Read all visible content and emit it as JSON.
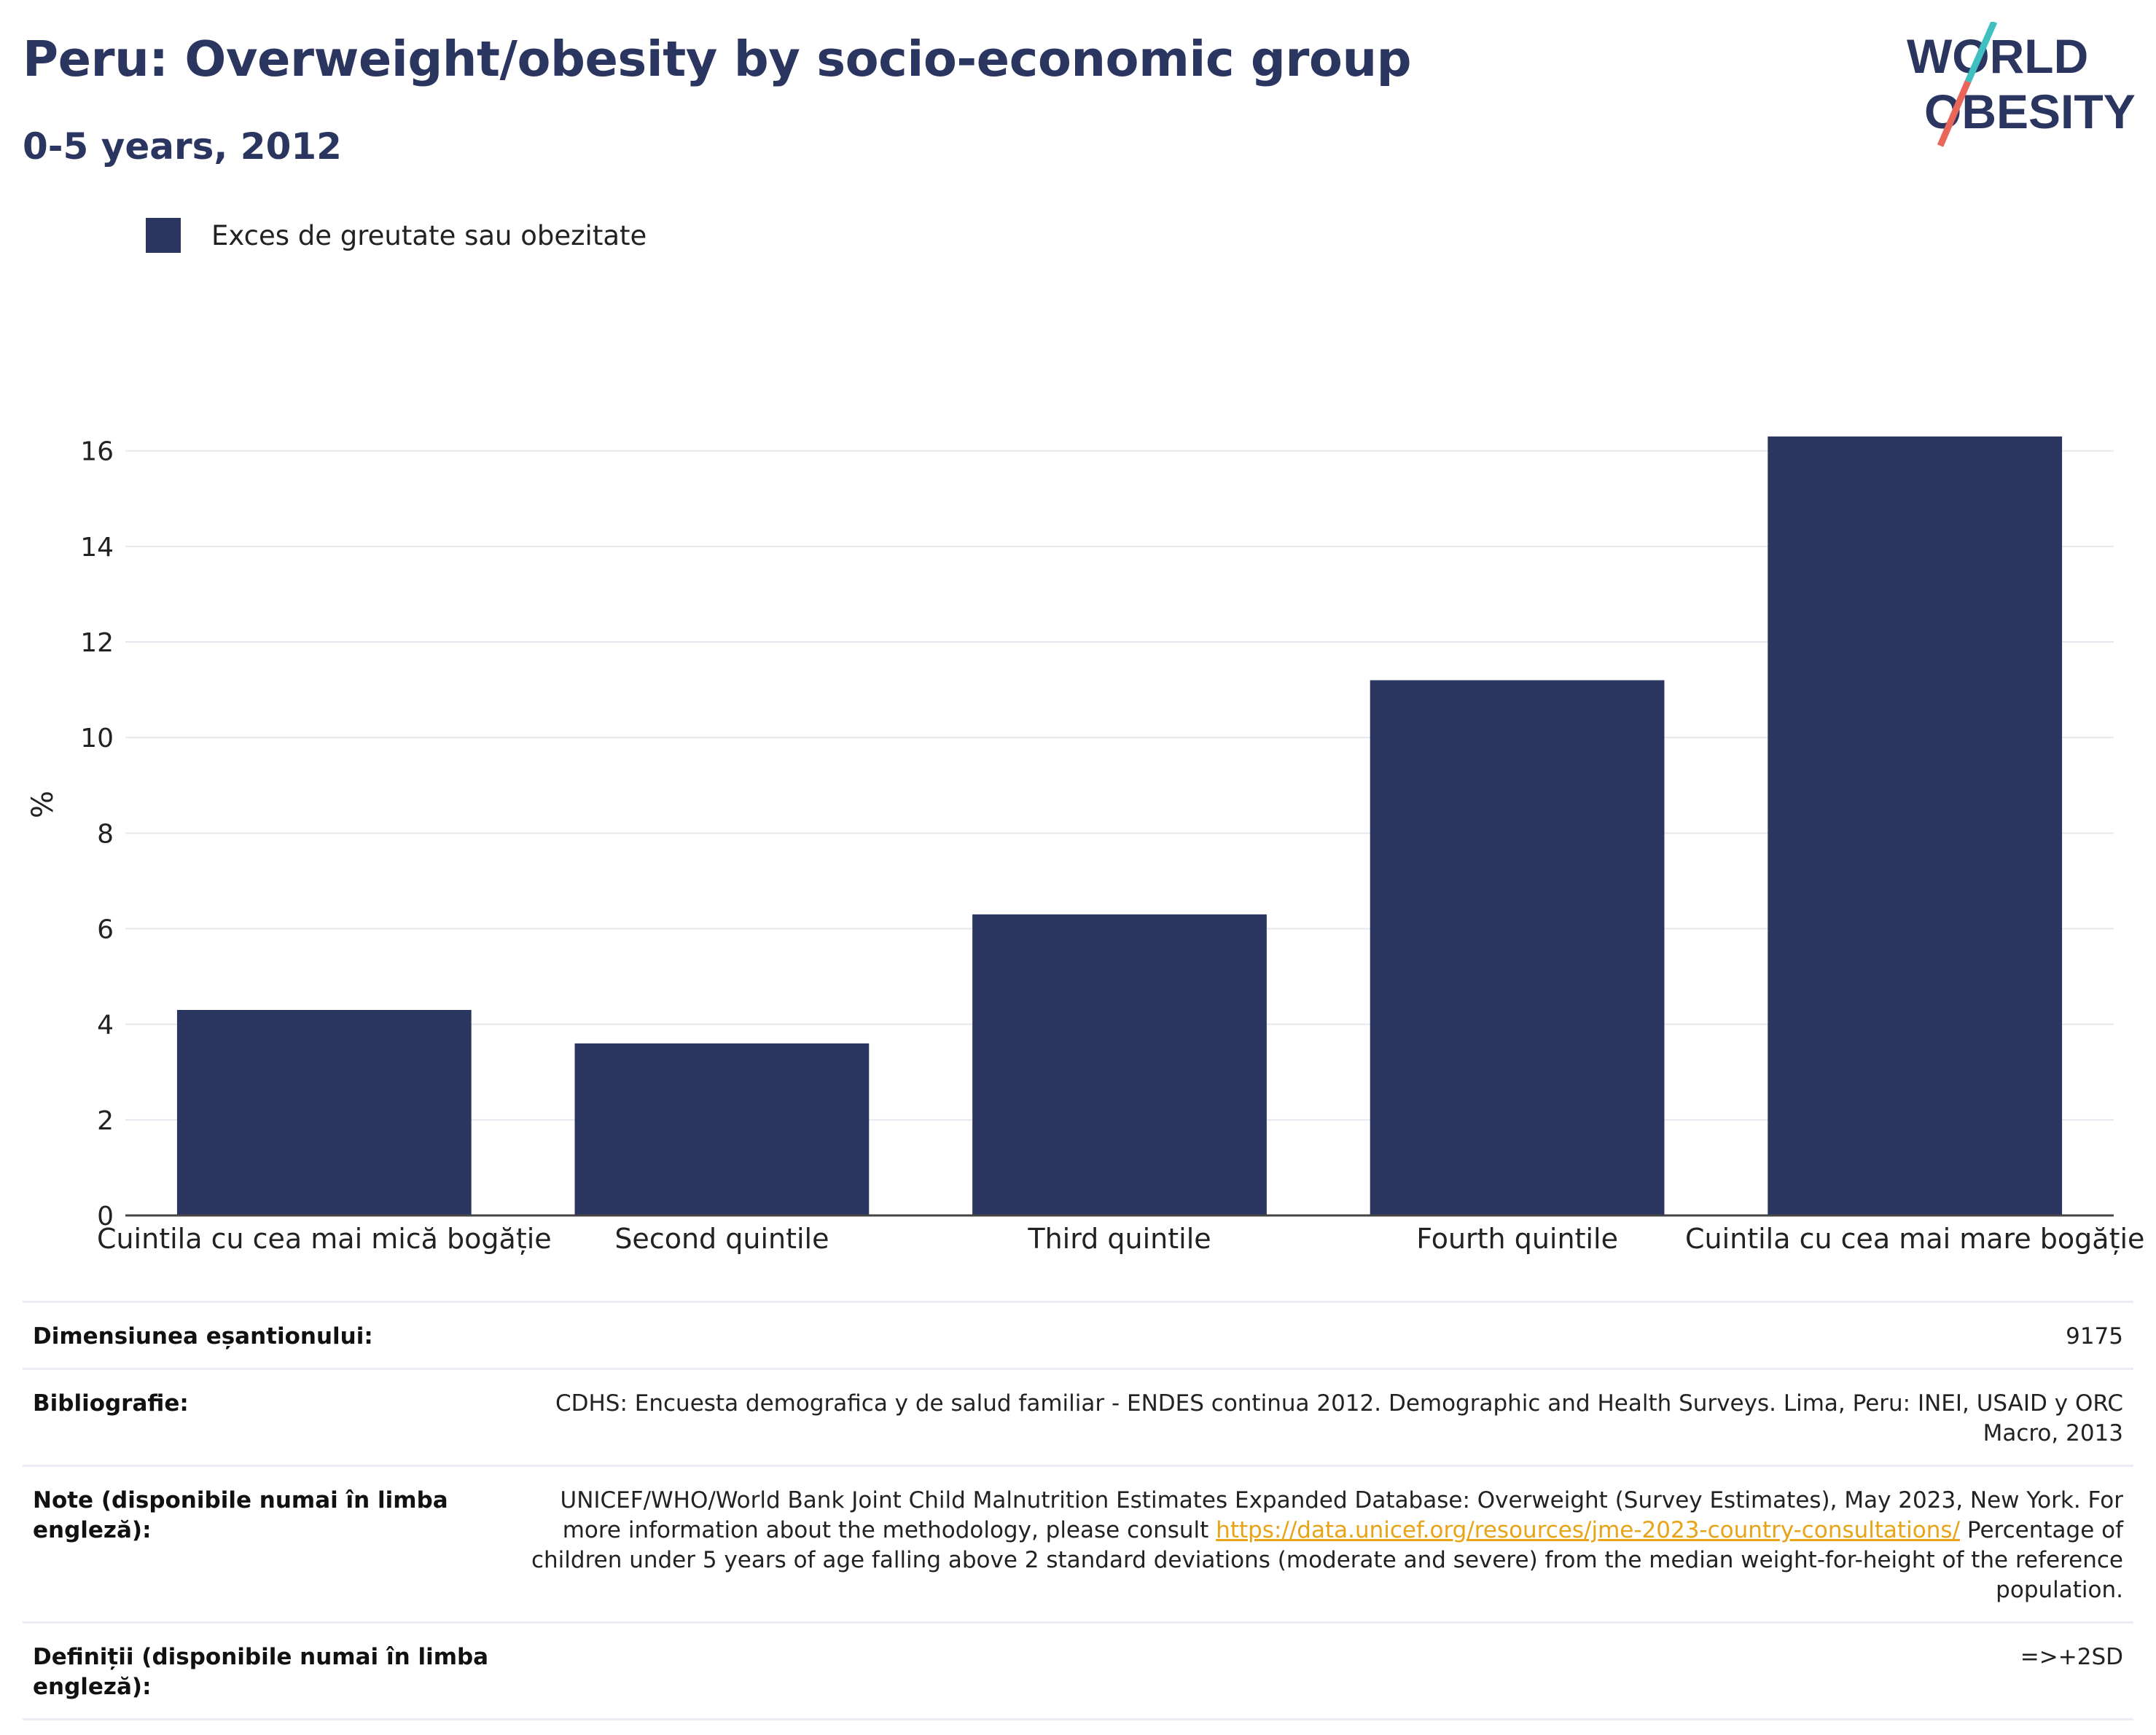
{
  "header": {
    "title": "Peru: Overweight/obesity by socio-economic group",
    "subtitle": "0-5 years, 2012"
  },
  "logo": {
    "line1": "WORLD",
    "line2": "OBESITY",
    "slash_color_top": "#3fbfbf",
    "slash_color_bottom": "#e8675a"
  },
  "colors": {
    "bar": "#2a3560",
    "title": "#2a3560",
    "gridline": "#e6e8ee",
    "link": "#e8a317"
  },
  "chart_data": {
    "type": "bar",
    "categories": [
      "Cuintila cu cea mai mică bogăție",
      "Second quintile",
      "Third quintile",
      "Fourth quintile",
      "Cuintila cu cea mai mare bogăție"
    ],
    "series": [
      {
        "name": "Exces de greutate sau obezitate",
        "values": [
          4.3,
          3.6,
          6.3,
          11.2,
          16.3
        ]
      }
    ],
    "ylabel": "%",
    "xlabel": "",
    "ylim": [
      0,
      17.2
    ],
    "yticks": [
      0,
      2,
      4,
      6,
      8,
      10,
      12,
      14,
      16
    ],
    "grid": true,
    "legend_position": "top-left"
  },
  "info": {
    "rows": [
      {
        "label": "Dimensiunea eșantionului:",
        "value": "9175"
      },
      {
        "label": "Bibliografie:",
        "value": "CDHS: Encuesta demografica y de salud familiar - ENDES continua 2012. Demographic and Health Surveys. Lima, Peru: INEI, USAID y ORC Macro, 2013"
      },
      {
        "label": "Note (disponibile numai în limba engleză):",
        "value_before": "UNICEF/WHO/World Bank Joint Child Malnutrition Estimates Expanded Database: Overweight (Survey Estimates), May 2023, New York. For more information about the methodology, please consult ",
        "link": "https://data.unicef.org/resources/jme-2023-country-consultations/",
        "value_after": " Percentage of children under 5 years of age falling above 2 standard deviations (moderate and severe) from the median weight-for-height of the reference population."
      },
      {
        "label": "Definiții (disponibile numai în limba engleză):",
        "value": "=>+2SD"
      }
    ]
  }
}
